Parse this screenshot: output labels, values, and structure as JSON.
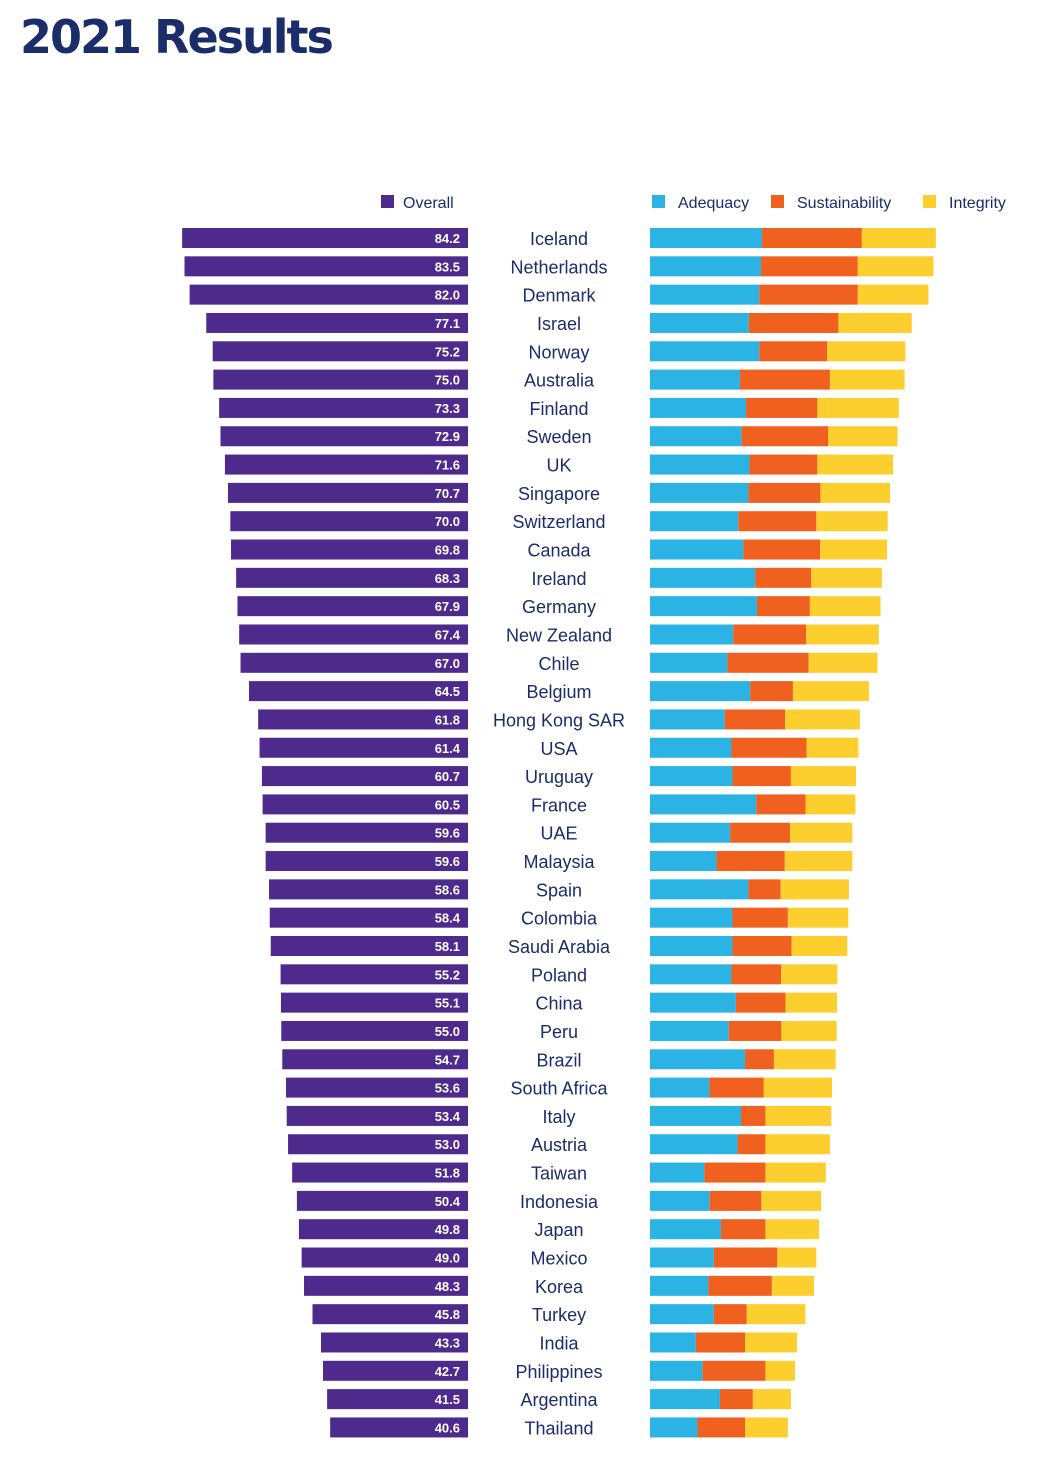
{
  "title": "2021 Results",
  "colors": {
    "overall": "#4d2a8c",
    "adequacy": "#2bb3e3",
    "sustainability": "#f0601f",
    "integrity": "#fccf2e",
    "text": "#1b2c6b"
  },
  "chart_data": {
    "type": "bar",
    "title": "2021 Results",
    "legend_left": [
      "Overall"
    ],
    "legend_right": [
      "Adequacy",
      "Sustainability",
      "Integrity"
    ],
    "categories": [
      "Iceland",
      "Netherlands",
      "Denmark",
      "Israel",
      "Norway",
      "Australia",
      "Finland",
      "Sweden",
      "UK",
      "Singapore",
      "Switzerland",
      "Canada",
      "Ireland",
      "Germany",
      "New Zealand",
      "Chile",
      "Belgium",
      "Hong Kong SAR",
      "USA",
      "Uruguay",
      "France",
      "UAE",
      "Malaysia",
      "Spain",
      "Colombia",
      "Saudi Arabia",
      "Poland",
      "China",
      "Peru",
      "Brazil",
      "South Africa",
      "Italy",
      "Austria",
      "Taiwan",
      "Indonesia",
      "Japan",
      "Mexico",
      "Korea",
      "Turkey",
      "India",
      "Philippines",
      "Argentina",
      "Thailand"
    ],
    "overall_labels": [
      "84.2",
      "83.5",
      "82.0",
      "77.1",
      "75.2",
      "75.0",
      "73.3",
      "72.9",
      "71.6",
      "70.7",
      "70.0",
      "69.8",
      "68.3",
      "67.9",
      "67.4",
      "67.0",
      "64.5",
      "61.8",
      "61.4",
      "60.7",
      "60.5",
      "59.6",
      "59.6",
      "58.6",
      "58.4",
      "58.1",
      "55.2",
      "55.1",
      "55.0",
      "54.7",
      "53.6",
      "53.4",
      "53.0",
      "51.8",
      "50.4",
      "49.8",
      "49.0",
      "48.3",
      "45.8",
      "43.3",
      "42.7",
      "41.5",
      "40.6"
    ],
    "series": [
      {
        "name": "Overall",
        "values": [
          84.2,
          83.5,
          82.0,
          77.1,
          75.2,
          75.0,
          73.3,
          72.9,
          71.6,
          70.7,
          70.0,
          69.8,
          68.3,
          67.9,
          67.4,
          67.0,
          64.5,
          61.8,
          61.4,
          60.7,
          60.5,
          59.6,
          59.6,
          58.6,
          58.4,
          58.1,
          55.2,
          55.1,
          55.0,
          54.7,
          53.6,
          53.4,
          53.0,
          51.8,
          50.4,
          49.8,
          49.0,
          48.3,
          45.8,
          43.3,
          42.7,
          41.5,
          40.6
        ]
      },
      {
        "name": "Adequacy",
        "values": [
          33.0,
          32.7,
          32.2,
          29.1,
          32.2,
          26.5,
          28.3,
          27.0,
          29.3,
          29.0,
          26.0,
          27.5,
          31.0,
          31.5,
          24.5,
          22.8,
          29.5,
          22.0,
          24.0,
          24.3,
          31.3,
          23.6,
          19.6,
          29.0,
          24.3,
          24.3,
          24.0,
          25.3,
          23.2,
          28.0,
          17.5,
          26.8,
          25.8,
          16.0,
          17.6,
          20.9,
          18.8,
          17.2,
          18.8,
          13.5,
          15.5,
          20.6,
          14.0
        ]
      },
      {
        "name": "Sustainability",
        "values": [
          29.4,
          28.5,
          29.0,
          26.4,
          20.0,
          26.5,
          21.0,
          25.5,
          20.0,
          21.2,
          23.0,
          22.6,
          16.5,
          15.6,
          21.5,
          23.9,
          12.6,
          17.8,
          22.1,
          17.2,
          14.5,
          17.7,
          20.1,
          9.5,
          16.3,
          17.4,
          14.6,
          14.6,
          15.5,
          8.5,
          16.0,
          7.2,
          8.2,
          18.0,
          15.2,
          13.1,
          18.7,
          18.7,
          9.7,
          14.5,
          18.5,
          9.7,
          14.0
        ]
      },
      {
        "name": "Integrity",
        "values": [
          21.8,
          22.3,
          20.8,
          21.6,
          23.0,
          22.0,
          24.0,
          20.4,
          22.3,
          20.5,
          21.0,
          19.7,
          20.8,
          20.8,
          21.4,
          20.3,
          22.4,
          22.0,
          15.3,
          19.2,
          14.7,
          18.3,
          19.9,
          20.1,
          17.8,
          16.4,
          16.6,
          15.2,
          16.3,
          18.2,
          20.1,
          19.4,
          19.0,
          17.8,
          17.6,
          15.8,
          11.5,
          12.4,
          17.3,
          15.3,
          8.7,
          11.2,
          12.6
        ]
      }
    ],
    "xlim": [
      0,
      90
    ],
    "grid": false
  }
}
